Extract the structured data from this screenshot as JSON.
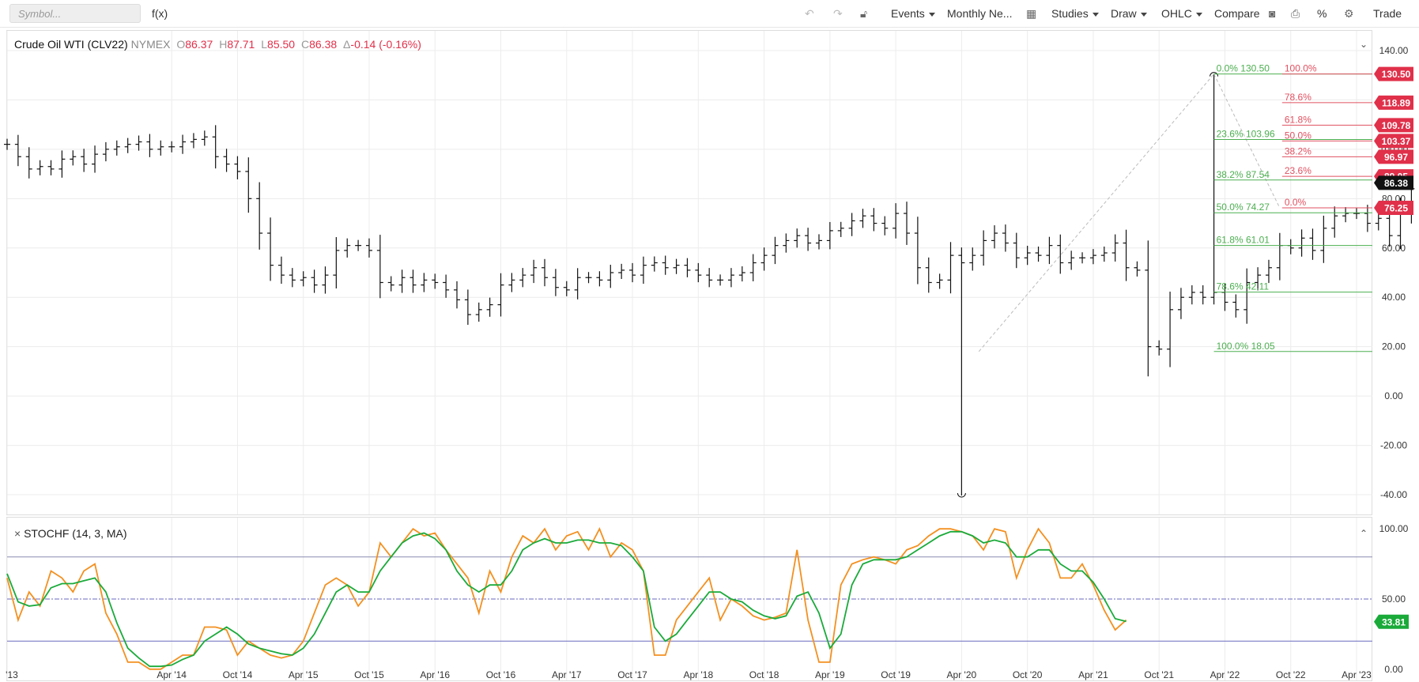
{
  "toolbar": {
    "symbol_placeholder": "Symbol...",
    "fx_label": "f(x)",
    "events_label": "Events",
    "template_label": "Monthly Ne...",
    "studies_label": "Studies",
    "draw_label": "Draw",
    "charttype_label": "OHLC",
    "compare_label": "Compare",
    "percent_label": "%",
    "trade_label": "Trade"
  },
  "legend": {
    "name": "Crude Oil WTI (CLV22)",
    "exchange": "NYMEX",
    "open_label": "O",
    "open": "86.37",
    "high_label": "H",
    "high": "87.71",
    "low_label": "L",
    "low": "85.50",
    "close_label": "C",
    "close": "86.38",
    "change_label": "Δ",
    "change": "-0.14",
    "change_pct": "(-0.16%)"
  },
  "stoch": {
    "title": "STOCHF (14, 3, MA)",
    "close_x": "×",
    "last_value": "33.81"
  },
  "colors": {
    "up_red": "#e0304a",
    "fib_green": "#4caf50",
    "fib_red": "#e05060",
    "stoch_k": "#f39020",
    "stoch_d": "#1aaa3a",
    "last_price_bg": "#111111"
  },
  "chart_data": {
    "type": "ohlc",
    "instrument": "Crude Oil WTI (CLV22)",
    "interval": "monthly",
    "price_ticks": [
      "140.00",
      "120.00",
      "100.00",
      "80.00",
      "60.00",
      "40.00",
      "20.00",
      "0.00",
      "-20.00",
      "-40.00"
    ],
    "price_range": [
      -48,
      148
    ],
    "date_ticks": [
      "'13",
      "Apr '14",
      "Oct '14",
      "Apr '15",
      "Oct '15",
      "Apr '16",
      "Oct '16",
      "Apr '17",
      "Oct '17",
      "Apr '18",
      "Oct '18",
      "Apr '19",
      "Oct '19",
      "Apr '20",
      "Oct '20",
      "Apr '21",
      "Oct '21",
      "Apr '22",
      "Oct '22",
      "Apr '23"
    ],
    "date_range_months": [
      "2013-01",
      "2023-04"
    ],
    "start_month": "2013-01",
    "closes": [
      102,
      97,
      92,
      93,
      92,
      96,
      97,
      94,
      98,
      100,
      101,
      102,
      103,
      100,
      101,
      101,
      103,
      104,
      105,
      97,
      94,
      91,
      80,
      66,
      53,
      49,
      47,
      48,
      45,
      49,
      59,
      61,
      61,
      59,
      46,
      45,
      48,
      45,
      47,
      46,
      43,
      39,
      33,
      35,
      37,
      45,
      47,
      49,
      52,
      48,
      44,
      43,
      48,
      48,
      47,
      50,
      51,
      49,
      53,
      54,
      52,
      53,
      51,
      49,
      47,
      47,
      49,
      50,
      54,
      57,
      61,
      63,
      65,
      62,
      63,
      67,
      68,
      71,
      73,
      70,
      68,
      74,
      66,
      52,
      46,
      47,
      57,
      54,
      57,
      63,
      66,
      62,
      56,
      58,
      57,
      61,
      54,
      56,
      56,
      57,
      58,
      62,
      52,
      51,
      20,
      19,
      35,
      40,
      42,
      40,
      42,
      38,
      35,
      46,
      49,
      52,
      61,
      60,
      64,
      59,
      68,
      73,
      74,
      74,
      70,
      72,
      65,
      75,
      84,
      88,
      100,
      101,
      104,
      115,
      110,
      98,
      89,
      87,
      79,
      86
    ],
    "ohlc_extremes": {
      "high": 130.5,
      "low": -40.32,
      "high_month": "2022-03",
      "low_month": "2020-04"
    },
    "fib_retracement_green": [
      {
        "label": "0.0% 130.50",
        "value": 130.5
      },
      {
        "label": "23.6% 103.96",
        "value": 103.96
      },
      {
        "label": "38.2% 87.54",
        "value": 87.54
      },
      {
        "label": "50.0% 74.27",
        "value": 74.27
      },
      {
        "label": "61.8% 61.01",
        "value": 61.01
      },
      {
        "label": "78.6% 42.11",
        "value": 42.11
      },
      {
        "label": "100.0% 18.05",
        "value": 18.05
      }
    ],
    "fib_retracement_red": [
      {
        "label": "100.0%",
        "value": 130.5
      },
      {
        "label": "78.6%",
        "value": 118.89
      },
      {
        "label": "61.8%",
        "value": 109.78
      },
      {
        "label": "50.0%",
        "value": 103.37
      },
      {
        "label": "38.2%",
        "value": 96.97
      },
      {
        "label": "23.6%",
        "value": 89.05
      },
      {
        "label": "0.0%",
        "value": 76.25
      }
    ],
    "price_badges": [
      {
        "label": "130.50",
        "value": 130.5,
        "kind": "red"
      },
      {
        "label": "118.89",
        "value": 118.89,
        "kind": "red"
      },
      {
        "label": "109.78",
        "value": 109.78,
        "kind": "red"
      },
      {
        "label": "103.37",
        "value": 103.37,
        "kind": "red"
      },
      {
        "label": "96.97",
        "value": 96.97,
        "kind": "red"
      },
      {
        "label": "89.05",
        "value": 89.05,
        "kind": "red"
      },
      {
        "label": "86.38",
        "value": 86.38,
        "kind": "last"
      },
      {
        "label": "76.25",
        "value": 76.25,
        "kind": "red"
      }
    ],
    "stoch_ticks": [
      "100.00",
      "50.00",
      "0.00"
    ],
    "stoch_range": [
      -8,
      108
    ],
    "stoch_levels": {
      "upper": 80,
      "middle": 50,
      "lower": 20
    },
    "stoch_k": [
      65,
      35,
      55,
      45,
      70,
      65,
      55,
      70,
      75,
      40,
      25,
      5,
      5,
      0,
      0,
      5,
      10,
      10,
      30,
      30,
      28,
      10,
      20,
      15,
      10,
      8,
      10,
      20,
      40,
      60,
      65,
      60,
      45,
      55,
      90,
      80,
      90,
      100,
      95,
      97,
      85,
      75,
      65,
      40,
      70,
      55,
      80,
      95,
      90,
      100,
      85,
      95,
      98,
      85,
      100,
      80,
      90,
      85,
      70,
      10,
      10,
      35,
      45,
      55,
      65,
      35,
      50,
      45,
      38,
      35,
      37,
      40,
      85,
      35,
      5,
      5,
      60,
      75,
      78,
      80,
      78,
      75,
      85,
      88,
      95,
      100,
      100,
      98,
      95,
      85,
      100,
      98,
      65,
      85,
      100,
      90,
      65,
      65,
      75,
      60,
      42,
      28,
      35
    ],
    "stoch_d": [
      68,
      48,
      45,
      46,
      58,
      61,
      61,
      63,
      65,
      55,
      33,
      15,
      8,
      2,
      2,
      3,
      7,
      10,
      20,
      25,
      30,
      25,
      18,
      15,
      13,
      11,
      10,
      15,
      25,
      40,
      55,
      60,
      55,
      55,
      70,
      80,
      90,
      95,
      97,
      93,
      85,
      70,
      60,
      55,
      60,
      60,
      70,
      85,
      90,
      93,
      90,
      90,
      92,
      92,
      90,
      90,
      88,
      80,
      70,
      30,
      20,
      25,
      35,
      45,
      55,
      55,
      50,
      48,
      42,
      38,
      36,
      38,
      52,
      55,
      40,
      15,
      25,
      60,
      75,
      78,
      78,
      78,
      80,
      85,
      90,
      95,
      98,
      98,
      95,
      90,
      92,
      90,
      80,
      80,
      85,
      85,
      75,
      70,
      70,
      62,
      50,
      36,
      34
    ]
  }
}
